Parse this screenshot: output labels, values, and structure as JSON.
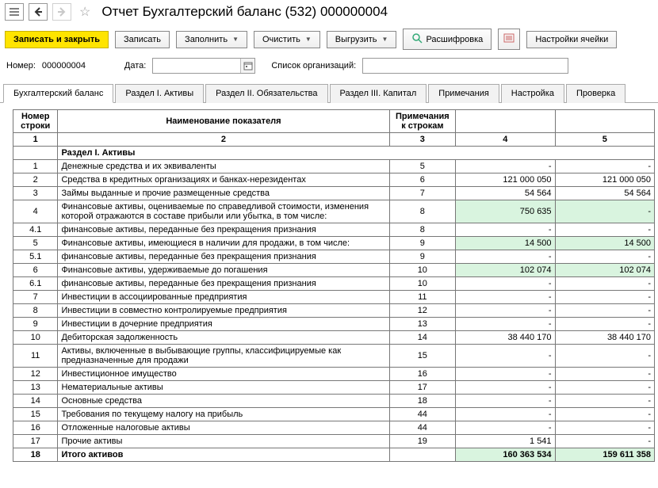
{
  "title": "Отчет Бухгалтерский баланс (532) 000000004",
  "toolbar": {
    "save_close": "Записать и закрыть",
    "save": "Записать",
    "fill": "Заполнить",
    "clear": "Очистить",
    "export": "Выгрузить",
    "decode": "Расшифровка",
    "cell_settings": "Настройки ячейки"
  },
  "form": {
    "number_label": "Номер:",
    "number_value": "000000004",
    "date_label": "Дата:",
    "date_value": "",
    "orgs_label": "Список организаций:",
    "orgs_value": ""
  },
  "tabs": [
    {
      "id": "balance",
      "label": "Бухгалтерский баланс",
      "active": true
    },
    {
      "id": "sec1",
      "label": "Раздел I. Активы",
      "active": false
    },
    {
      "id": "sec2",
      "label": "Раздел II. Обязательства",
      "active": false
    },
    {
      "id": "sec3",
      "label": "Раздел III. Капитал",
      "active": false
    },
    {
      "id": "notes",
      "label": "Примечания",
      "active": false
    },
    {
      "id": "setup",
      "label": "Настройка",
      "active": false
    },
    {
      "id": "check",
      "label": "Проверка",
      "active": false
    }
  ],
  "grid": {
    "headers": {
      "row_num": "Номер строки",
      "indicator": "Наименование показателя",
      "notes": "Примечания к строкам"
    },
    "colnums": [
      "1",
      "2",
      "3",
      "4",
      "5"
    ],
    "highlight_color": "#d9f4df",
    "rows": [
      {
        "num": "",
        "name": "Раздел I. Активы",
        "section": true
      },
      {
        "num": "1",
        "name": "Денежные средства и их эквиваленты",
        "note": "5",
        "v4": "-",
        "v5": "-"
      },
      {
        "num": "2",
        "name": "Средства в кредитных организациях и банках-нерезидентах",
        "note": "6",
        "v4": "121 000 050",
        "v5": "121 000 050"
      },
      {
        "num": "3",
        "name": "Займы выданные и прочие размещенные средства",
        "note": "7",
        "v4": "54 564",
        "v5": "54 564"
      },
      {
        "num": "4",
        "name": "Финансовые активы, оцениваемые по справедливой стоимости, изменения которой отражаются в составе прибыли или убытка, в том числе:",
        "note": "8",
        "v4": "750 635",
        "v5": "-",
        "hl": true
      },
      {
        "num": "4.1",
        "name": "финансовые активы, переданные без прекращения признания",
        "note": "8",
        "v4": "-",
        "v5": "-",
        "indent": true
      },
      {
        "num": "5",
        "name": "Финансовые активы, имеющиеся в наличии для продажи, в том числе:",
        "note": "9",
        "v4": "14 500",
        "v5": "14 500",
        "hl": true
      },
      {
        "num": "5.1",
        "name": "финансовые активы, переданные без прекращения признания",
        "note": "9",
        "v4": "-",
        "v5": "-",
        "indent": true
      },
      {
        "num": "6",
        "name": "Финансовые активы, удерживаемые до погашения",
        "note": "10",
        "v4": "102 074",
        "v5": "102 074",
        "hl": true
      },
      {
        "num": "6.1",
        "name": "финансовые активы, переданные без прекращения признания",
        "note": "10",
        "v4": "-",
        "v5": "-",
        "indent": true
      },
      {
        "num": "7",
        "name": "Инвестиции в ассоциированные предприятия",
        "note": "11",
        "v4": "-",
        "v5": "-"
      },
      {
        "num": "8",
        "name": "Инвестиции в совместно контролируемые предприятия",
        "note": "12",
        "v4": "-",
        "v5": "-"
      },
      {
        "num": "9",
        "name": "Инвестиции в дочерние предприятия",
        "note": "13",
        "v4": "-",
        "v5": "-"
      },
      {
        "num": "10",
        "name": "Дебиторская задолженность",
        "note": "14",
        "v4": "38 440 170",
        "v5": "38 440 170"
      },
      {
        "num": "11",
        "name": "Активы, включенные в выбывающие группы, классифицируемые как предназначенные для продажи",
        "note": "15",
        "v4": "-",
        "v5": "-"
      },
      {
        "num": "12",
        "name": "Инвестиционное имущество",
        "note": "16",
        "v4": "-",
        "v5": "-"
      },
      {
        "num": "13",
        "name": "Нематериальные активы",
        "note": "17",
        "v4": "-",
        "v5": "-"
      },
      {
        "num": "14",
        "name": "Основные средства",
        "note": "18",
        "v4": "-",
        "v5": "-"
      },
      {
        "num": "15",
        "name": "Требования по текущему налогу на прибыль",
        "note": "44",
        "v4": "-",
        "v5": "-"
      },
      {
        "num": "16",
        "name": "Отложенные налоговые активы",
        "note": "44",
        "v4": "-",
        "v5": "-"
      },
      {
        "num": "17",
        "name": "Прочие активы",
        "note": "19",
        "v4": "1 541",
        "v5": "-"
      },
      {
        "num": "18",
        "name": "Итого активов",
        "note": "",
        "v4": "160 363 534",
        "v5": "159 611 358",
        "hl": true,
        "total": true
      }
    ]
  }
}
